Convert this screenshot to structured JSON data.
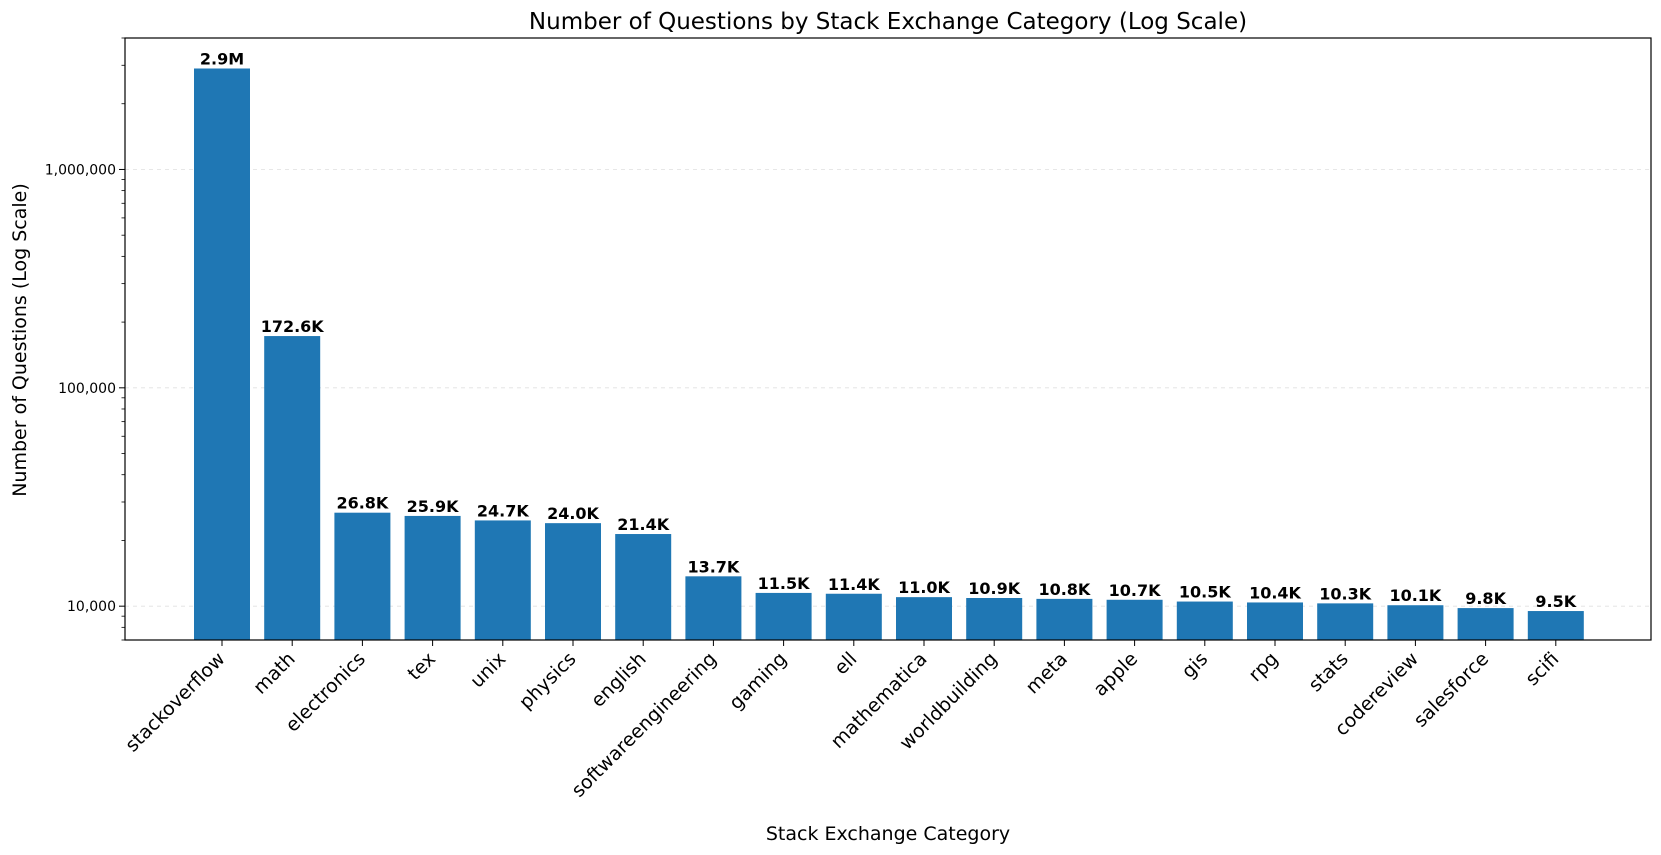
{
  "chart_data": {
    "type": "bar",
    "title": "Number of Questions by Stack Exchange Category (Log Scale)",
    "xlabel": "Stack Exchange Category",
    "ylabel": "Number of Questions (Log Scale)",
    "yscale": "log",
    "ylim": [
      7000,
      4000000
    ],
    "yticks": [
      10000,
      100000,
      1000000
    ],
    "ytick_labels": [
      "10,000",
      "100,000",
      "1,000,000"
    ],
    "grid": "horizontal dashed",
    "bar_color": "#1f77b4",
    "categories": [
      "stackoverflow",
      "math",
      "electronics",
      "tex",
      "unix",
      "physics",
      "english",
      "softwareengineering",
      "gaming",
      "ell",
      "mathematica",
      "worldbuilding",
      "meta",
      "apple",
      "gis",
      "rpg",
      "stats",
      "codereview",
      "salesforce",
      "scifi"
    ],
    "values": [
      2900000,
      172600,
      26800,
      25900,
      24700,
      24000,
      21400,
      13700,
      11500,
      11400,
      11000,
      10900,
      10800,
      10700,
      10500,
      10400,
      10300,
      10100,
      9800,
      9500
    ],
    "data_labels": [
      "2.9M",
      "172.6K",
      "26.8K",
      "25.9K",
      "24.7K",
      "24.0K",
      "21.4K",
      "13.7K",
      "11.5K",
      "11.4K",
      "11.0K",
      "10.9K",
      "10.8K",
      "10.7K",
      "10.5K",
      "10.4K",
      "10.3K",
      "10.1K",
      "9.8K",
      "9.5K"
    ]
  }
}
